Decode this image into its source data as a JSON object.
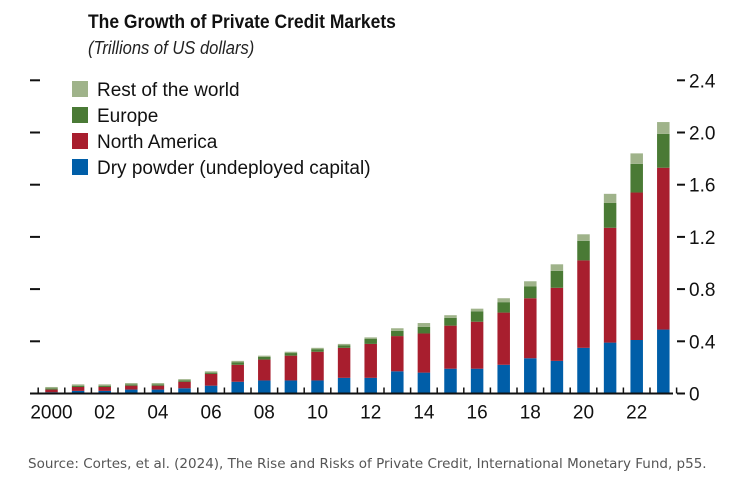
{
  "chart_data": {
    "type": "bar",
    "stacked": true,
    "title": "The Growth of Private Credit Markets",
    "subtitle": "(Trillions of US dollars)",
    "categories": [
      "2000",
      "2001",
      "2002",
      "2003",
      "2004",
      "2005",
      "2006",
      "2007",
      "2008",
      "2009",
      "2010",
      "2011",
      "2012",
      "2013",
      "2014",
      "2015",
      "2016",
      "2017",
      "2018",
      "2019",
      "2020",
      "2021",
      "2022",
      "2023"
    ],
    "x_tick_labels": [
      "2000",
      "02",
      "04",
      "06",
      "08",
      "10",
      "12",
      "14",
      "16",
      "18",
      "20",
      "22"
    ],
    "y_tick_labels": [
      "0",
      "0.4",
      "0.8",
      "1.2",
      "1.6",
      "2.0",
      "2.4"
    ],
    "ylim": [
      0,
      2.4
    ],
    "y_axis_side": "right",
    "grid": false,
    "legend_position": "top-left",
    "series": [
      {
        "name": "Dry powder (undeployed capital)",
        "color": "#005ea8",
        "values": [
          0.01,
          0.02,
          0.02,
          0.03,
          0.03,
          0.04,
          0.06,
          0.09,
          0.1,
          0.1,
          0.1,
          0.12,
          0.12,
          0.17,
          0.16,
          0.19,
          0.19,
          0.22,
          0.27,
          0.25,
          0.35,
          0.39,
          0.41,
          0.49
        ]
      },
      {
        "name": "North America",
        "color": "#a81e2e",
        "values": [
          0.02,
          0.03,
          0.03,
          0.03,
          0.03,
          0.05,
          0.09,
          0.13,
          0.16,
          0.19,
          0.22,
          0.23,
          0.26,
          0.27,
          0.3,
          0.33,
          0.36,
          0.4,
          0.46,
          0.56,
          0.67,
          0.88,
          1.13,
          1.24
        ]
      },
      {
        "name": "Europe",
        "color": "#4a7a35",
        "values": [
          0.01,
          0.01,
          0.01,
          0.01,
          0.01,
          0.01,
          0.01,
          0.02,
          0.02,
          0.02,
          0.02,
          0.02,
          0.04,
          0.04,
          0.05,
          0.06,
          0.08,
          0.08,
          0.09,
          0.13,
          0.15,
          0.19,
          0.22,
          0.26
        ]
      },
      {
        "name": "Rest of the world",
        "color": "#9fb38a",
        "values": [
          0.01,
          0.01,
          0.01,
          0.01,
          0.01,
          0.01,
          0.01,
          0.01,
          0.01,
          0.01,
          0.01,
          0.01,
          0.01,
          0.02,
          0.03,
          0.02,
          0.02,
          0.03,
          0.04,
          0.05,
          0.05,
          0.07,
          0.08,
          0.09
        ]
      }
    ],
    "legend_order": [
      "Rest of the world",
      "Europe",
      "North America",
      "Dry powder (undeployed capital)"
    ]
  },
  "source": "Source: Cortes, et al. (2024), The Rise and Risks of Private Credit, International Monetary Fund, p55."
}
